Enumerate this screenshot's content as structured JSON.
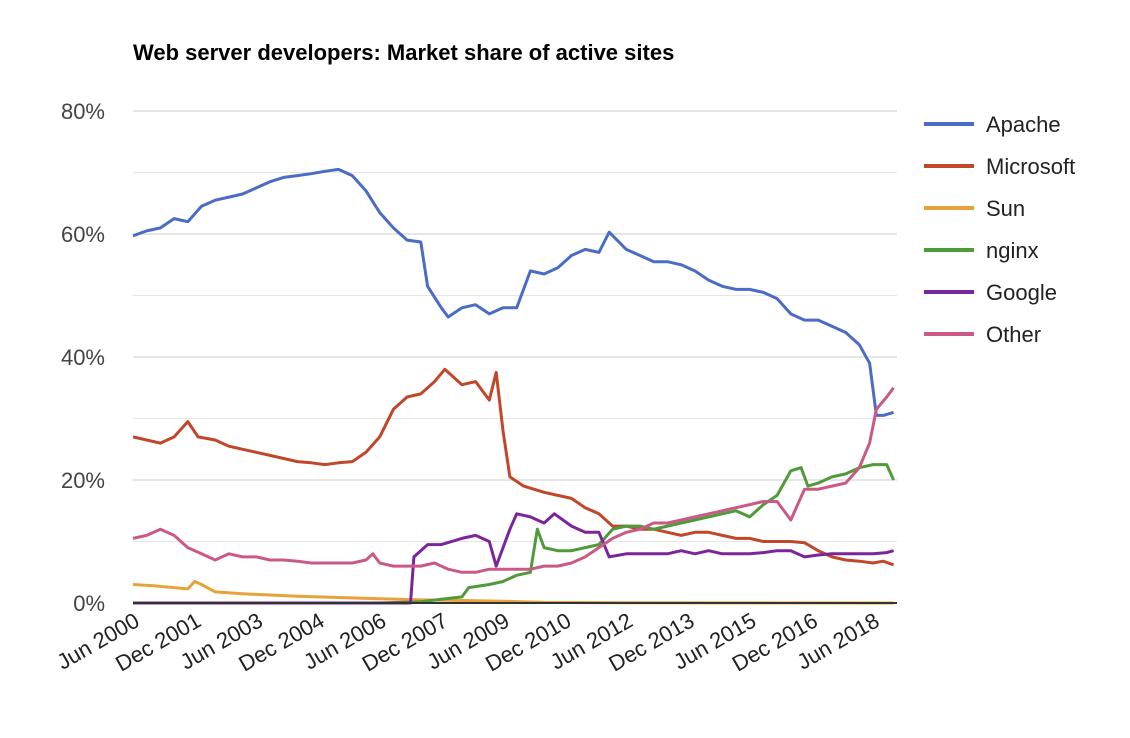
{
  "chart_data": {
    "type": "line",
    "title": "Web server developers: Market share of active sites",
    "xlabel": "",
    "ylabel": "",
    "x_ticks": [
      "Jun 2000",
      "Dec 2001",
      "Jun 2003",
      "Dec 2004",
      "Jun 2006",
      "Dec 2007",
      "Jun 2009",
      "Dec 2010",
      "Jun 2012",
      "Dec 2013",
      "Jun 2015",
      "Dec 2016",
      "Jun 2018"
    ],
    "y_ticks": [
      "0%",
      "20%",
      "40%",
      "60%",
      "80%"
    ],
    "xlim": [
      "2000-06",
      "2019-01"
    ],
    "ylim": [
      0,
      80
    ],
    "grid": true,
    "legend_position": "right",
    "series": [
      {
        "name": "Apache",
        "color": "#4a6cc4",
        "points": [
          [
            "2000-06",
            59.7
          ],
          [
            "2000-10",
            60.5
          ],
          [
            "2001-02",
            61.0
          ],
          [
            "2001-06",
            62.5
          ],
          [
            "2001-10",
            62.0
          ],
          [
            "2002-02",
            64.5
          ],
          [
            "2002-06",
            65.5
          ],
          [
            "2002-10",
            66.0
          ],
          [
            "2003-02",
            66.5
          ],
          [
            "2003-06",
            67.5
          ],
          [
            "2003-10",
            68.5
          ],
          [
            "2004-02",
            69.2
          ],
          [
            "2004-06",
            69.5
          ],
          [
            "2004-10",
            69.8
          ],
          [
            "2005-02",
            70.2
          ],
          [
            "2005-06",
            70.5
          ],
          [
            "2005-10",
            69.5
          ],
          [
            "2006-02",
            67.0
          ],
          [
            "2006-06",
            63.5
          ],
          [
            "2006-10",
            61.0
          ],
          [
            "2007-02",
            59.0
          ],
          [
            "2007-06",
            58.7
          ],
          [
            "2007-08",
            51.5
          ],
          [
            "2007-12",
            48.0
          ],
          [
            "2008-02",
            46.5
          ],
          [
            "2008-06",
            48.0
          ],
          [
            "2008-10",
            48.5
          ],
          [
            "2009-02",
            47.0
          ],
          [
            "2009-06",
            48.0
          ],
          [
            "2009-10",
            48.0
          ],
          [
            "2010-02",
            54.0
          ],
          [
            "2010-06",
            53.5
          ],
          [
            "2010-10",
            54.5
          ],
          [
            "2011-02",
            56.5
          ],
          [
            "2011-06",
            57.5
          ],
          [
            "2011-10",
            57.0
          ],
          [
            "2012-01",
            60.3
          ],
          [
            "2012-06",
            57.5
          ],
          [
            "2012-10",
            56.5
          ],
          [
            "2013-02",
            55.5
          ],
          [
            "2013-06",
            55.5
          ],
          [
            "2013-10",
            55.0
          ],
          [
            "2014-02",
            54.0
          ],
          [
            "2014-06",
            52.5
          ],
          [
            "2014-10",
            51.5
          ],
          [
            "2015-02",
            51.0
          ],
          [
            "2015-06",
            51.0
          ],
          [
            "2015-10",
            50.5
          ],
          [
            "2016-02",
            49.5
          ],
          [
            "2016-06",
            47.0
          ],
          [
            "2016-10",
            46.0
          ],
          [
            "2017-02",
            46.0
          ],
          [
            "2017-06",
            45.0
          ],
          [
            "2017-10",
            44.0
          ],
          [
            "2018-02",
            42.0
          ],
          [
            "2018-05",
            39.0
          ],
          [
            "2018-07",
            30.5
          ],
          [
            "2018-09",
            30.5
          ],
          [
            "2018-12",
            31.0
          ]
        ]
      },
      {
        "name": "Microsoft",
        "color": "#c0472a",
        "points": [
          [
            "2000-06",
            27.0
          ],
          [
            "2000-10",
            26.5
          ],
          [
            "2001-02",
            26.0
          ],
          [
            "2001-06",
            27.0
          ],
          [
            "2001-10",
            29.5
          ],
          [
            "2002-01",
            27.0
          ],
          [
            "2002-06",
            26.5
          ],
          [
            "2002-10",
            25.5
          ],
          [
            "2003-02",
            25.0
          ],
          [
            "2003-06",
            24.5
          ],
          [
            "2003-10",
            24.0
          ],
          [
            "2004-02",
            23.5
          ],
          [
            "2004-06",
            23.0
          ],
          [
            "2004-10",
            22.8
          ],
          [
            "2005-02",
            22.5
          ],
          [
            "2005-06",
            22.8
          ],
          [
            "2005-10",
            23.0
          ],
          [
            "2006-02",
            24.5
          ],
          [
            "2006-06",
            27.0
          ],
          [
            "2006-10",
            31.5
          ],
          [
            "2007-02",
            33.5
          ],
          [
            "2007-06",
            34.0
          ],
          [
            "2007-10",
            36.0
          ],
          [
            "2008-01",
            38.0
          ],
          [
            "2008-06",
            35.5
          ],
          [
            "2008-10",
            36.0
          ],
          [
            "2009-02",
            33.0
          ],
          [
            "2009-04",
            37.5
          ],
          [
            "2009-06",
            28.0
          ],
          [
            "2009-08",
            20.5
          ],
          [
            "2009-12",
            19.0
          ],
          [
            "2010-06",
            18.0
          ],
          [
            "2010-10",
            17.5
          ],
          [
            "2011-02",
            17.0
          ],
          [
            "2011-06",
            15.5
          ],
          [
            "2011-10",
            14.5
          ],
          [
            "2012-02",
            12.5
          ],
          [
            "2012-06",
            12.5
          ],
          [
            "2012-10",
            12.0
          ],
          [
            "2013-02",
            12.0
          ],
          [
            "2013-06",
            11.5
          ],
          [
            "2013-10",
            11.0
          ],
          [
            "2014-02",
            11.5
          ],
          [
            "2014-06",
            11.5
          ],
          [
            "2014-10",
            11.0
          ],
          [
            "2015-02",
            10.5
          ],
          [
            "2015-06",
            10.5
          ],
          [
            "2015-10",
            10.0
          ],
          [
            "2016-02",
            10.0
          ],
          [
            "2016-06",
            10.0
          ],
          [
            "2016-10",
            9.8
          ],
          [
            "2017-02",
            8.5
          ],
          [
            "2017-06",
            7.5
          ],
          [
            "2017-10",
            7.0
          ],
          [
            "2018-02",
            6.8
          ],
          [
            "2018-06",
            6.5
          ],
          [
            "2018-09",
            6.8
          ],
          [
            "2018-12",
            6.2
          ]
        ]
      },
      {
        "name": "Sun",
        "color": "#e8a23a",
        "points": [
          [
            "2000-06",
            3.0
          ],
          [
            "2000-12",
            2.8
          ],
          [
            "2001-06",
            2.5
          ],
          [
            "2001-10",
            2.3
          ],
          [
            "2001-12",
            3.5
          ],
          [
            "2002-02",
            3.0
          ],
          [
            "2002-06",
            1.8
          ],
          [
            "2003-02",
            1.5
          ],
          [
            "2003-06",
            1.4
          ],
          [
            "2004-06",
            1.1
          ],
          [
            "2005-06",
            0.9
          ],
          [
            "2006-06",
            0.7
          ],
          [
            "2007-06",
            0.5
          ],
          [
            "2008-06",
            0.4
          ],
          [
            "2009-06",
            0.3
          ],
          [
            "2010-06",
            0.1
          ],
          [
            "2012-06",
            0.05
          ],
          [
            "2018-12",
            0.0
          ]
        ]
      },
      {
        "name": "nginx",
        "color": "#4f9a3a",
        "points": [
          [
            "2000-06",
            0.0
          ],
          [
            "2006-06",
            0.0
          ],
          [
            "2007-06",
            0.2
          ],
          [
            "2007-12",
            0.6
          ],
          [
            "2008-06",
            1.0
          ],
          [
            "2008-08",
            2.5
          ],
          [
            "2009-02",
            3.0
          ],
          [
            "2009-06",
            3.5
          ],
          [
            "2009-10",
            4.5
          ],
          [
            "2010-02",
            5.0
          ],
          [
            "2010-04",
            12.0
          ],
          [
            "2010-06",
            9.0
          ],
          [
            "2010-10",
            8.5
          ],
          [
            "2011-02",
            8.5
          ],
          [
            "2011-06",
            9.0
          ],
          [
            "2011-10",
            9.5
          ],
          [
            "2012-02",
            12.0
          ],
          [
            "2012-06",
            12.5
          ],
          [
            "2012-10",
            12.5
          ],
          [
            "2013-02",
            12.0
          ],
          [
            "2013-06",
            12.5
          ],
          [
            "2013-10",
            13.0
          ],
          [
            "2014-02",
            13.5
          ],
          [
            "2014-06",
            14.0
          ],
          [
            "2014-10",
            14.5
          ],
          [
            "2015-02",
            15.0
          ],
          [
            "2015-06",
            14.0
          ],
          [
            "2015-10",
            16.0
          ],
          [
            "2016-02",
            17.5
          ],
          [
            "2016-06",
            21.5
          ],
          [
            "2016-09",
            22.0
          ],
          [
            "2016-11",
            19.0
          ],
          [
            "2017-02",
            19.5
          ],
          [
            "2017-06",
            20.5
          ],
          [
            "2017-10",
            21.0
          ],
          [
            "2018-02",
            22.0
          ],
          [
            "2018-06",
            22.5
          ],
          [
            "2018-10",
            22.5
          ],
          [
            "2018-12",
            20.0
          ]
        ]
      },
      {
        "name": "Google",
        "color": "#7a259a",
        "points": [
          [
            "2000-06",
            0.0
          ],
          [
            "2007-03",
            0.0
          ],
          [
            "2007-04",
            7.5
          ],
          [
            "2007-08",
            9.5
          ],
          [
            "2007-12",
            9.5
          ],
          [
            "2008-06",
            10.5
          ],
          [
            "2008-10",
            11.0
          ],
          [
            "2009-02",
            10.0
          ],
          [
            "2009-04",
            6.0
          ],
          [
            "2009-08",
            12.0
          ],
          [
            "2009-10",
            14.5
          ],
          [
            "2010-02",
            14.0
          ],
          [
            "2010-06",
            13.0
          ],
          [
            "2010-09",
            14.5
          ],
          [
            "2011-02",
            12.5
          ],
          [
            "2011-06",
            11.5
          ],
          [
            "2011-10",
            11.5
          ],
          [
            "2012-01",
            7.5
          ],
          [
            "2012-06",
            8.0
          ],
          [
            "2012-10",
            8.0
          ],
          [
            "2013-02",
            8.0
          ],
          [
            "2013-06",
            8.0
          ],
          [
            "2013-10",
            8.5
          ],
          [
            "2014-02",
            8.0
          ],
          [
            "2014-06",
            8.5
          ],
          [
            "2014-10",
            8.0
          ],
          [
            "2015-02",
            8.0
          ],
          [
            "2015-06",
            8.0
          ],
          [
            "2015-10",
            8.2
          ],
          [
            "2016-02",
            8.5
          ],
          [
            "2016-06",
            8.5
          ],
          [
            "2016-10",
            7.5
          ],
          [
            "2017-02",
            7.8
          ],
          [
            "2017-06",
            8.0
          ],
          [
            "2017-10",
            8.0
          ],
          [
            "2018-02",
            8.0
          ],
          [
            "2018-06",
            8.0
          ],
          [
            "2018-10",
            8.2
          ],
          [
            "2018-12",
            8.5
          ]
        ]
      },
      {
        "name": "Other",
        "color": "#c95a86",
        "points": [
          [
            "2000-06",
            10.5
          ],
          [
            "2000-10",
            11.0
          ],
          [
            "2001-02",
            12.0
          ],
          [
            "2001-06",
            11.0
          ],
          [
            "2001-10",
            9.0
          ],
          [
            "2002-02",
            8.0
          ],
          [
            "2002-06",
            7.0
          ],
          [
            "2002-10",
            8.0
          ],
          [
            "2003-02",
            7.5
          ],
          [
            "2003-06",
            7.5
          ],
          [
            "2003-10",
            7.0
          ],
          [
            "2004-02",
            7.0
          ],
          [
            "2004-06",
            6.8
          ],
          [
            "2004-10",
            6.5
          ],
          [
            "2005-02",
            6.5
          ],
          [
            "2005-06",
            6.5
          ],
          [
            "2005-10",
            6.5
          ],
          [
            "2006-02",
            7.0
          ],
          [
            "2006-04",
            8.0
          ],
          [
            "2006-06",
            6.5
          ],
          [
            "2006-10",
            6.0
          ],
          [
            "2007-02",
            6.0
          ],
          [
            "2007-06",
            6.0
          ],
          [
            "2007-10",
            6.5
          ],
          [
            "2008-02",
            5.5
          ],
          [
            "2008-06",
            5.0
          ],
          [
            "2008-10",
            5.0
          ],
          [
            "2009-02",
            5.5
          ],
          [
            "2009-06",
            5.5
          ],
          [
            "2009-10",
            5.5
          ],
          [
            "2010-02",
            5.5
          ],
          [
            "2010-06",
            6.0
          ],
          [
            "2010-10",
            6.0
          ],
          [
            "2011-02",
            6.5
          ],
          [
            "2011-06",
            7.5
          ],
          [
            "2011-10",
            9.0
          ],
          [
            "2012-02",
            10.5
          ],
          [
            "2012-06",
            11.5
          ],
          [
            "2012-10",
            12.0
          ],
          [
            "2013-02",
            13.0
          ],
          [
            "2013-06",
            13.0
          ],
          [
            "2013-10",
            13.5
          ],
          [
            "2014-02",
            14.0
          ],
          [
            "2014-06",
            14.5
          ],
          [
            "2014-10",
            15.0
          ],
          [
            "2015-02",
            15.5
          ],
          [
            "2015-06",
            16.0
          ],
          [
            "2015-10",
            16.5
          ],
          [
            "2016-02",
            16.5
          ],
          [
            "2016-06",
            13.5
          ],
          [
            "2016-10",
            18.5
          ],
          [
            "2017-02",
            18.5
          ],
          [
            "2017-06",
            19.0
          ],
          [
            "2017-10",
            19.5
          ],
          [
            "2018-02",
            22.0
          ],
          [
            "2018-05",
            26.0
          ],
          [
            "2018-07",
            31.5
          ],
          [
            "2018-10",
            33.5
          ],
          [
            "2018-12",
            35.0
          ]
        ]
      }
    ]
  }
}
